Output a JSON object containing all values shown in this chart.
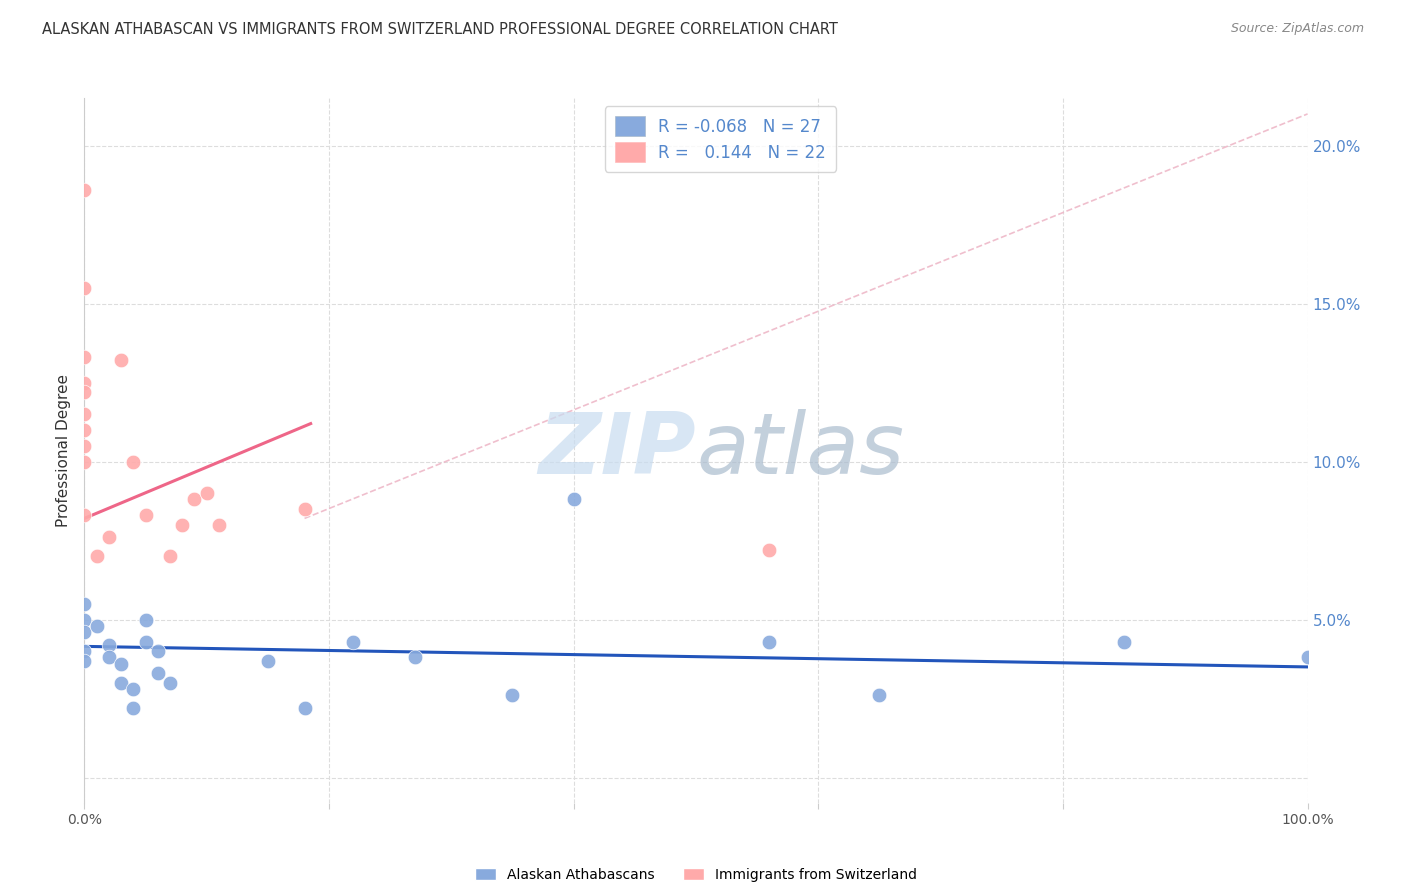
{
  "title": "ALASKAN ATHABASCAN VS IMMIGRANTS FROM SWITZERLAND PROFESSIONAL DEGREE CORRELATION CHART",
  "source": "Source: ZipAtlas.com",
  "ylabel": "Professional Degree",
  "xlim": [
    0.0,
    1.0
  ],
  "ylim": [
    -0.008,
    0.215
  ],
  "xtick_positions": [
    0.0,
    0.2,
    0.4,
    0.6,
    0.8,
    1.0
  ],
  "xtick_labels": [
    "0.0%",
    "",
    "",
    "",
    "",
    "100.0%"
  ],
  "ytick_positions": [
    0.0,
    0.05,
    0.1,
    0.15,
    0.2
  ],
  "right_ytick_labels": [
    "",
    "5.0%",
    "10.0%",
    "15.0%",
    "20.0%"
  ],
  "legend_R1": "-0.068",
  "legend_N1": "27",
  "legend_R2": "0.144",
  "legend_N2": "22",
  "blue_color": "#88AADD",
  "pink_color": "#FFAAAA",
  "blue_line_color": "#2255BB",
  "pink_line_color": "#EE6688",
  "diagonal_line_color": "#EEB8C8",
  "title_color": "#333333",
  "source_color": "#888888",
  "right_tick_color": "#5588CC",
  "legend_text_color": "#5588CC",
  "grid_color": "#DDDDDD",
  "blue_scatter_x": [
    0.0,
    0.0,
    0.0,
    0.0,
    0.0,
    0.01,
    0.02,
    0.02,
    0.03,
    0.03,
    0.04,
    0.04,
    0.05,
    0.05,
    0.06,
    0.06,
    0.07,
    0.15,
    0.18,
    0.22,
    0.27,
    0.35,
    0.4,
    0.56,
    0.65,
    0.85,
    1.0
  ],
  "blue_scatter_y": [
    0.055,
    0.05,
    0.046,
    0.04,
    0.037,
    0.048,
    0.042,
    0.038,
    0.036,
    0.03,
    0.028,
    0.022,
    0.05,
    0.043,
    0.04,
    0.033,
    0.03,
    0.037,
    0.022,
    0.043,
    0.038,
    0.026,
    0.088,
    0.043,
    0.026,
    0.043,
    0.038
  ],
  "pink_scatter_x": [
    0.0,
    0.0,
    0.0,
    0.0,
    0.0,
    0.0,
    0.0,
    0.0,
    0.0,
    0.0,
    0.01,
    0.02,
    0.03,
    0.04,
    0.05,
    0.07,
    0.08,
    0.09,
    0.1,
    0.11,
    0.18,
    0.56
  ],
  "pink_scatter_y": [
    0.186,
    0.155,
    0.133,
    0.125,
    0.122,
    0.115,
    0.11,
    0.105,
    0.1,
    0.083,
    0.07,
    0.076,
    0.132,
    0.1,
    0.083,
    0.07,
    0.08,
    0.088,
    0.09,
    0.08,
    0.085,
    0.072
  ],
  "blue_line_x": [
    0.0,
    1.0
  ],
  "blue_line_y": [
    0.0415,
    0.035
  ],
  "pink_line_x": [
    0.0,
    0.185
  ],
  "pink_line_y": [
    0.082,
    0.112
  ],
  "diag_line_x": [
    0.18,
    1.0
  ],
  "diag_line_y": [
    0.082,
    0.21
  ]
}
